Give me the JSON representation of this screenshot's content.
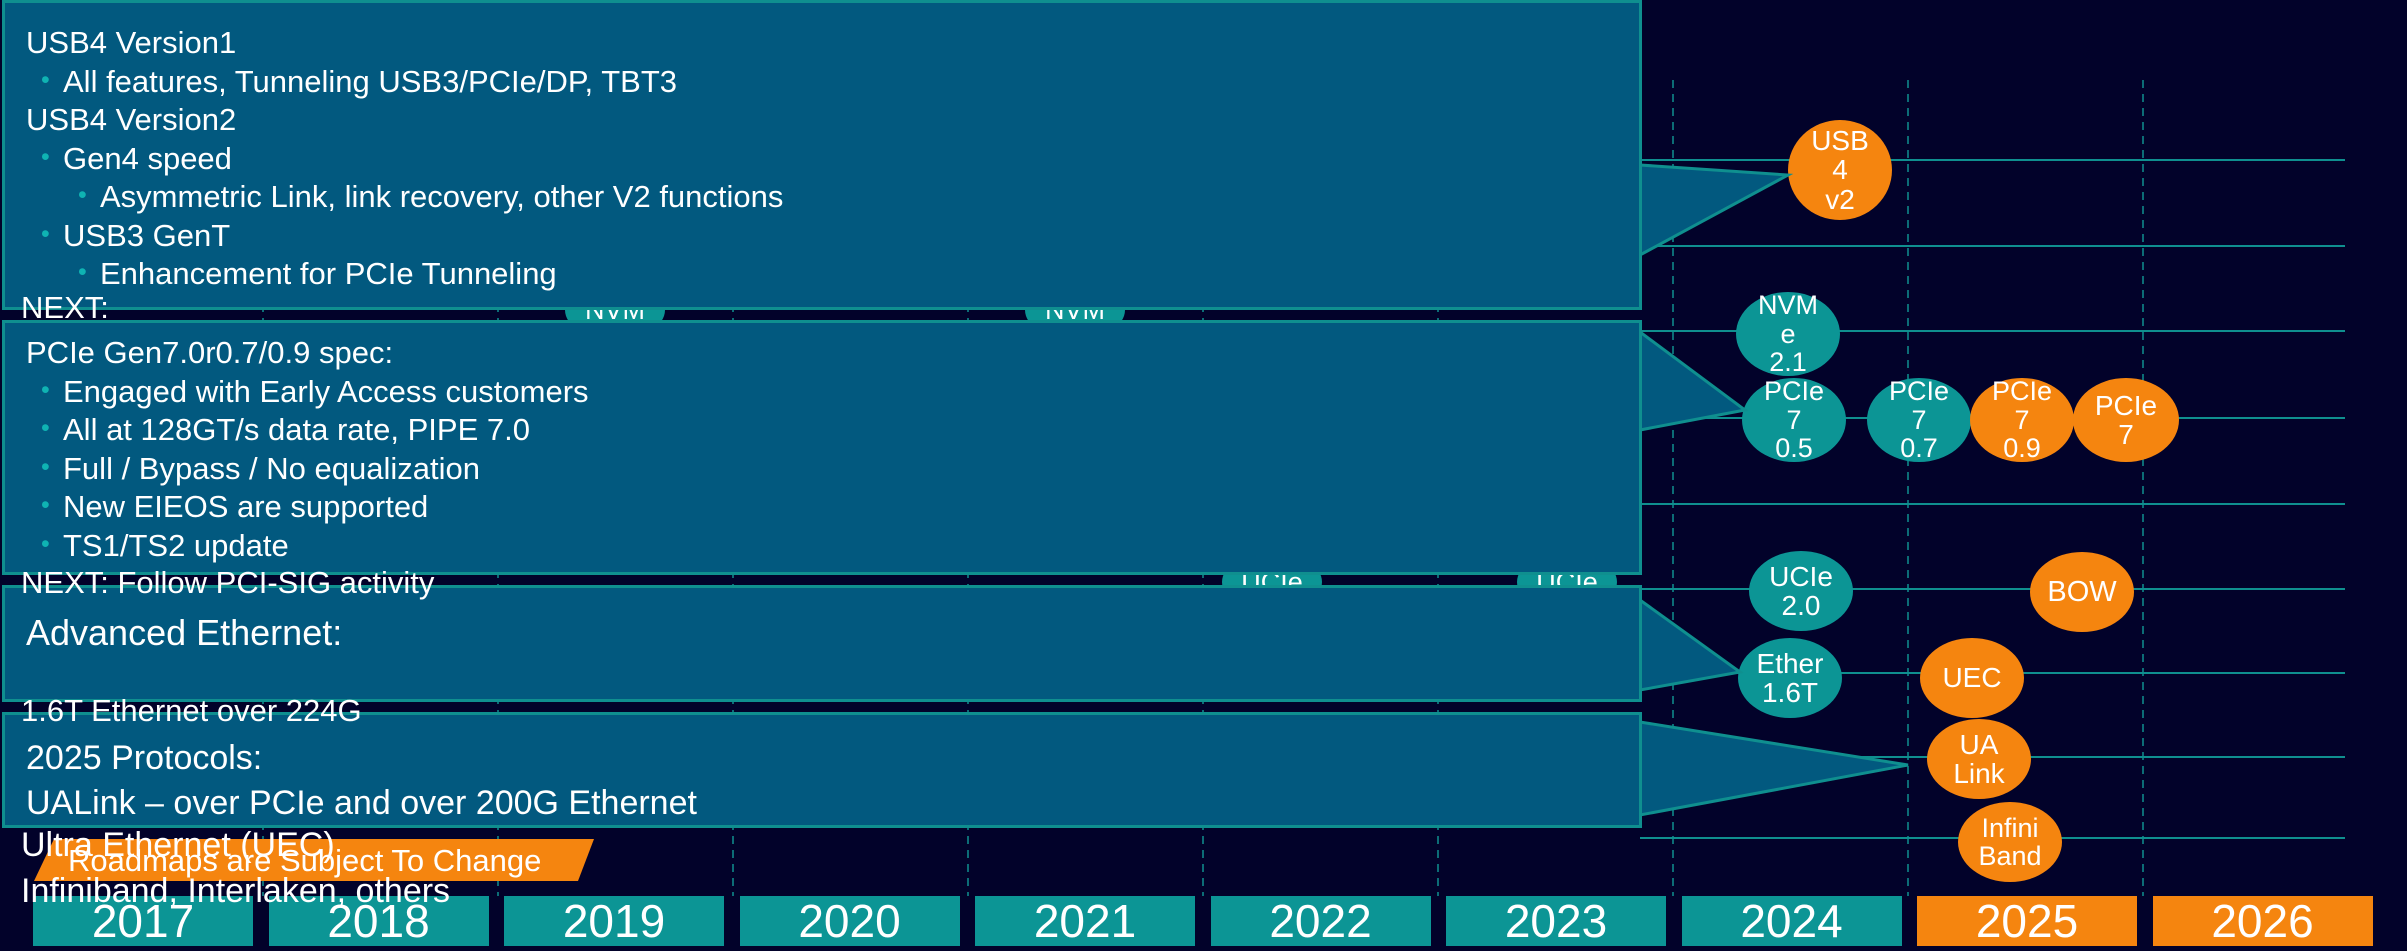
{
  "colors": {
    "background": "#02022a",
    "teal": "#0c9595",
    "orange": "#f5850f",
    "callout_fill": "#02597f",
    "callout_border": "#0f8f8f",
    "bullet": "#0fb3b3",
    "guide": "#0f8f8f"
  },
  "years": [
    {
      "label": "2017",
      "highlight": false
    },
    {
      "label": "2018",
      "highlight": false
    },
    {
      "label": "2019",
      "highlight": false
    },
    {
      "label": "2020",
      "highlight": false
    },
    {
      "label": "2021",
      "highlight": false
    },
    {
      "label": "2022",
      "highlight": false
    },
    {
      "label": "2023",
      "highlight": false
    },
    {
      "label": "2024",
      "highlight": false
    },
    {
      "label": "2025",
      "highlight": true
    },
    {
      "label": "2026",
      "highlight": true
    }
  ],
  "disclaimer": "Roadmaps are Subject To Change",
  "callouts": {
    "usb4": {
      "lines": [
        {
          "text": "USB4 Version1",
          "level": 0
        },
        {
          "text": "All features, Tunneling USB3/PCIe/DP, TBT3",
          "level": 1
        },
        {
          "text": "USB4 Version2",
          "level": 0
        },
        {
          "text": "Gen4 speed",
          "level": 1
        },
        {
          "text": "Asymmetric Link, link recovery, other V2 functions",
          "level": 2
        },
        {
          "text": "USB3 GenT",
          "level": 1
        },
        {
          "text": "Enhancement for PCIe Tunneling",
          "level": 2
        }
      ],
      "overflow": "NEXT:"
    },
    "pcie": {
      "lines": [
        {
          "text": "PCIe Gen7.0r0.7/0.9 spec:",
          "level": 0
        },
        {
          "text": "Engaged with Early Access customers",
          "level": 1
        },
        {
          "text": "All at 128GT/s data rate, PIPE 7.0",
          "level": 1
        },
        {
          "text": "Full / Bypass / No equalization",
          "level": 1
        },
        {
          "text": "New EIEOS are supported",
          "level": 1
        },
        {
          "text": "TS1/TS2 update",
          "level": 1
        }
      ],
      "overflow": "NEXT: Follow PCI-SIG activity"
    },
    "ethernet": {
      "lines": [
        {
          "text": "Advanced Ethernet:",
          "level": 0
        }
      ],
      "overflow": "1.6T Ethernet over 224G"
    },
    "protocols": {
      "lines": [
        {
          "text": "2025 Protocols:",
          "level": 0
        },
        {
          "text": "UALink – over PCIe and over 200G Ethernet",
          "level": 0
        }
      ],
      "overflow_lines": [
        "Ultra Ethernet (UEC)",
        "Infiniband, Interlaken, others"
      ]
    }
  },
  "nodes": [
    {
      "id": "usb4-v2",
      "lines": [
        "USB",
        "4",
        "v2"
      ],
      "color": "orange"
    },
    {
      "id": "nvme-2-1",
      "lines": [
        "NVM",
        "e",
        "2.1"
      ],
      "color": "teal"
    },
    {
      "id": "pcie7-0-5",
      "lines": [
        "PCIe",
        "7",
        "0.5"
      ],
      "color": "teal"
    },
    {
      "id": "pcie7-0-7",
      "lines": [
        "PCIe",
        "7",
        "0.7"
      ],
      "color": "teal"
    },
    {
      "id": "pcie7-0-9",
      "lines": [
        "PCIe",
        "7",
        "0.9"
      ],
      "color": "orange"
    },
    {
      "id": "pcie7",
      "lines": [
        "PCIe",
        "7"
      ],
      "color": "orange"
    },
    {
      "id": "ucie-2-0",
      "lines": [
        "UCIe",
        "2.0"
      ],
      "color": "teal"
    },
    {
      "id": "bow",
      "lines": [
        "BOW"
      ],
      "color": "orange"
    },
    {
      "id": "ether-1-6t",
      "lines": [
        "Ether",
        "1.6T"
      ],
      "color": "teal"
    },
    {
      "id": "uec",
      "lines": [
        "UEC"
      ],
      "color": "orange"
    },
    {
      "id": "ualink",
      "lines": [
        "UA",
        "Link"
      ],
      "color": "orange"
    },
    {
      "id": "infiniband",
      "lines": [
        "Infini",
        "Band"
      ],
      "color": "orange"
    },
    {
      "id": "partial-nvme-2019",
      "lines": [
        "NVM"
      ],
      "color": "teal"
    },
    {
      "id": "partial-nvme-2021",
      "lines": [
        "NVM"
      ],
      "color": "teal"
    },
    {
      "id": "partial-ucie-2022",
      "lines": [
        "UCIe"
      ],
      "color": "teal"
    },
    {
      "id": "partial-ucie-2023",
      "lines": [
        "UCIe"
      ],
      "color": "teal"
    }
  ]
}
